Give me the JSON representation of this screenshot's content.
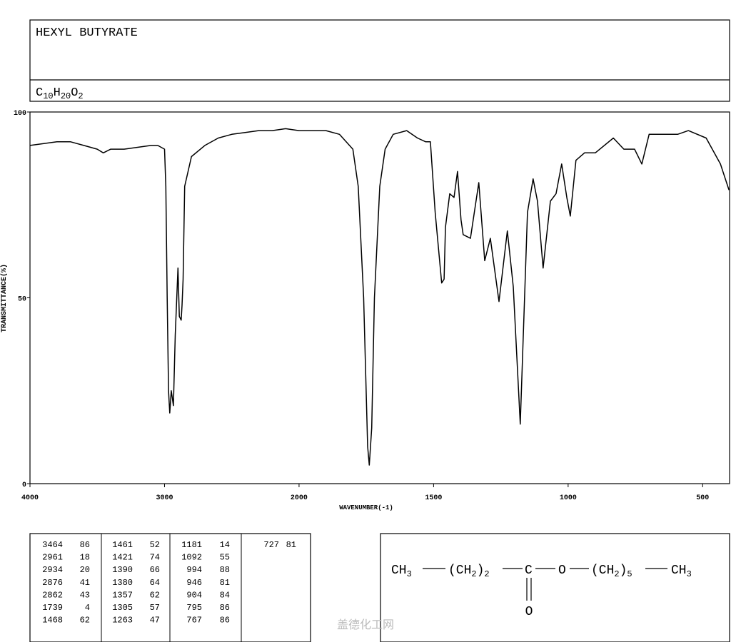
{
  "chart_data": {
    "type": "line",
    "title": "HEXYL BUTYRATE",
    "formula": [
      "C",
      "10",
      "H",
      "20",
      "O",
      "2"
    ],
    "xlabel": "WAVENUMBER(-1)",
    "ylabel": "TRANSMITTANCE(%)",
    "xlim": [
      4000,
      400
    ],
    "ylim": [
      0,
      100
    ],
    "xticks": [
      4000,
      3000,
      2000,
      1500,
      1000,
      500
    ],
    "yticks": [
      0,
      50,
      100
    ],
    "color": "#000000",
    "x": [
      4000,
      3800,
      3700,
      3600,
      3500,
      3455,
      3400,
      3300,
      3200,
      3100,
      3050,
      3000,
      2990,
      2980,
      2970,
      2961,
      2950,
      2934,
      2920,
      2900,
      2890,
      2876,
      2870,
      2862,
      2850,
      2800,
      2700,
      2600,
      2500,
      2400,
      2300,
      2200,
      2100,
      2000,
      1900,
      1850,
      1800,
      1780,
      1760,
      1745,
      1739,
      1730,
      1720,
      1700,
      1680,
      1650,
      1600,
      1560,
      1530,
      1512,
      1494,
      1470,
      1461,
      1456,
      1440,
      1424,
      1411,
      1398,
      1390,
      1363,
      1332,
      1310,
      1289,
      1257,
      1226,
      1204,
      1178,
      1151,
      1130,
      1114,
      1093,
      1066,
      1045,
      1024,
      1005,
      992,
      971,
      939,
      899,
      832,
      793,
      753,
      726,
      699,
      593,
      553,
      487,
      434,
      402
    ],
    "values": [
      91,
      92,
      92,
      91,
      90,
      89,
      90,
      90,
      90.5,
      91,
      91,
      90,
      80,
      50,
      25,
      19,
      25,
      21,
      40,
      58,
      45,
      44,
      48,
      55,
      80,
      88,
      91,
      93,
      94,
      94.5,
      95,
      95,
      95.5,
      95,
      95,
      94,
      90,
      80,
      50,
      10,
      5,
      15,
      50,
      80,
      90,
      94,
      95,
      93,
      92,
      92,
      73,
      54,
      55,
      69,
      78,
      77,
      84,
      71,
      67,
      66,
      81,
      60,
      66,
      49,
      68,
      53,
      16,
      73,
      82,
      76,
      58,
      76,
      78,
      86,
      77,
      72,
      87,
      89,
      89,
      93,
      90,
      90,
      86,
      94,
      94,
      95,
      93,
      86,
      79
    ],
    "peak_table": [
      [
        3464,
        86
      ],
      [
        2961,
        18
      ],
      [
        2934,
        20
      ],
      [
        2876,
        41
      ],
      [
        2862,
        43
      ],
      [
        1739,
        4
      ],
      [
        1468,
        62
      ],
      [
        1461,
        52
      ],
      [
        1421,
        74
      ],
      [
        1390,
        66
      ],
      [
        1380,
        64
      ],
      [
        1357,
        62
      ],
      [
        1305,
        57
      ],
      [
        1263,
        47
      ],
      [
        1181,
        14
      ],
      [
        1092,
        55
      ],
      [
        994,
        88
      ],
      [
        946,
        81
      ],
      [
        904,
        84
      ],
      [
        795,
        86
      ],
      [
        767,
        86
      ],
      [
        727,
        81
      ]
    ],
    "structure": {
      "groups": [
        [
          "CH",
          "3"
        ],
        [
          "(CH",
          "2",
          ")",
          "2"
        ],
        [
          "C"
        ],
        [
          "O"
        ],
        [
          "(CH",
          "2",
          ")",
          "5"
        ],
        [
          "CH",
          "3"
        ]
      ],
      "carbonyl_oxygen": "O"
    },
    "watermark": "盖德化工网"
  }
}
